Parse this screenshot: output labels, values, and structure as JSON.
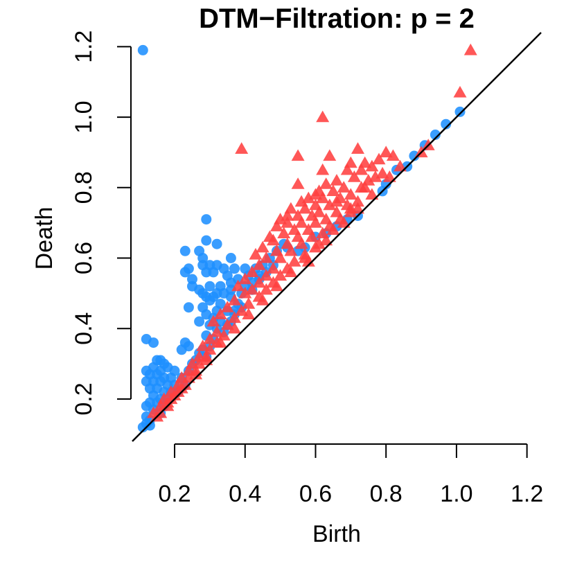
{
  "chart_data": {
    "type": "scatter",
    "title": "DTM−Filtration: p =  2",
    "xlabel": "Birth",
    "ylabel": "Death",
    "xlim": [
      0.08,
      1.24
    ],
    "ylim": [
      0.08,
      1.24
    ],
    "x_ticks": [
      0.2,
      0.4,
      0.6,
      0.8,
      1.0,
      1.2
    ],
    "x_tick_labels": [
      "0.2",
      "0.4",
      "0.6",
      "0.8",
      "1.0",
      "1.2"
    ],
    "y_ticks": [
      0.2,
      0.4,
      0.6,
      0.8,
      1.0,
      1.2
    ],
    "y_tick_labels": [
      "0.2",
      "0.4",
      "0.6",
      "0.8",
      "1.0",
      "1.2"
    ],
    "diagonal": true,
    "series": [
      {
        "marker": "circle",
        "color": "#1E90FF",
        "points": [
          [
            0.11,
            1.19
          ],
          [
            1.01,
            1.015
          ],
          [
            0.94,
            0.95
          ],
          [
            0.88,
            0.89
          ],
          [
            0.86,
            0.86
          ],
          [
            0.79,
            0.79
          ],
          [
            0.72,
            0.72
          ],
          [
            0.29,
            0.71
          ],
          [
            0.29,
            0.65
          ],
          [
            0.32,
            0.64
          ],
          [
            0.51,
            0.64
          ],
          [
            0.27,
            0.62
          ],
          [
            0.23,
            0.62
          ],
          [
            0.28,
            0.6
          ],
          [
            0.36,
            0.6
          ],
          [
            0.28,
            0.58
          ],
          [
            0.3,
            0.58
          ],
          [
            0.32,
            0.58
          ],
          [
            0.34,
            0.57
          ],
          [
            0.37,
            0.57
          ],
          [
            0.4,
            0.57
          ],
          [
            0.43,
            0.57
          ],
          [
            0.24,
            0.57
          ],
          [
            0.23,
            0.56
          ],
          [
            0.29,
            0.56
          ],
          [
            0.31,
            0.56
          ],
          [
            0.46,
            0.56
          ],
          [
            0.35,
            0.55
          ],
          [
            0.41,
            0.55
          ],
          [
            0.25,
            0.54
          ],
          [
            0.38,
            0.54
          ],
          [
            0.44,
            0.54
          ],
          [
            0.36,
            0.53
          ],
          [
            0.25,
            0.52
          ],
          [
            0.3,
            0.52
          ],
          [
            0.33,
            0.52
          ],
          [
            0.27,
            0.51
          ],
          [
            0.36,
            0.51
          ],
          [
            0.42,
            0.51
          ],
          [
            0.28,
            0.5
          ],
          [
            0.32,
            0.5
          ],
          [
            0.34,
            0.5
          ],
          [
            0.39,
            0.5
          ],
          [
            0.29,
            0.49
          ],
          [
            0.31,
            0.49
          ],
          [
            0.36,
            0.49
          ],
          [
            0.3,
            0.48
          ],
          [
            0.33,
            0.47
          ],
          [
            0.38,
            0.47
          ],
          [
            0.28,
            0.46
          ],
          [
            0.24,
            0.46
          ],
          [
            0.32,
            0.45
          ],
          [
            0.35,
            0.45
          ],
          [
            0.37,
            0.45
          ],
          [
            0.29,
            0.44
          ],
          [
            0.31,
            0.43
          ],
          [
            0.27,
            0.42
          ],
          [
            0.33,
            0.42
          ],
          [
            0.3,
            0.41
          ],
          [
            0.32,
            0.4
          ],
          [
            0.34,
            0.39
          ],
          [
            0.29,
            0.38
          ],
          [
            0.31,
            0.37
          ],
          [
            0.12,
            0.37
          ],
          [
            0.14,
            0.36
          ],
          [
            0.23,
            0.36
          ],
          [
            0.24,
            0.35
          ],
          [
            0.22,
            0.34
          ],
          [
            0.28,
            0.34
          ],
          [
            0.3,
            0.35
          ],
          [
            0.27,
            0.33
          ],
          [
            0.29,
            0.32
          ],
          [
            0.26,
            0.31
          ],
          [
            0.16,
            0.31
          ],
          [
            0.15,
            0.31
          ],
          [
            0.17,
            0.3
          ],
          [
            0.25,
            0.3
          ],
          [
            0.14,
            0.29
          ],
          [
            0.18,
            0.29
          ],
          [
            0.12,
            0.28
          ],
          [
            0.16,
            0.28
          ],
          [
            0.2,
            0.28
          ],
          [
            0.24,
            0.28
          ],
          [
            0.13,
            0.27
          ],
          [
            0.15,
            0.27
          ],
          [
            0.17,
            0.26
          ],
          [
            0.19,
            0.26
          ],
          [
            0.22,
            0.26
          ],
          [
            0.12,
            0.25
          ],
          [
            0.14,
            0.25
          ],
          [
            0.16,
            0.25
          ],
          [
            0.18,
            0.24
          ],
          [
            0.2,
            0.24
          ],
          [
            0.23,
            0.24
          ],
          [
            0.13,
            0.23
          ],
          [
            0.15,
            0.23
          ],
          [
            0.17,
            0.22
          ],
          [
            0.19,
            0.22
          ],
          [
            0.21,
            0.22
          ],
          [
            0.14,
            0.21
          ],
          [
            0.16,
            0.2
          ],
          [
            0.18,
            0.2
          ],
          [
            0.13,
            0.19
          ],
          [
            0.15,
            0.19
          ],
          [
            0.17,
            0.18
          ],
          [
            0.12,
            0.18
          ],
          [
            0.14,
            0.17
          ],
          [
            0.16,
            0.16
          ],
          [
            0.12,
            0.15
          ],
          [
            0.13,
            0.14
          ],
          [
            0.12,
            0.13
          ],
          [
            0.11,
            0.12
          ],
          [
            0.13,
            0.125
          ],
          [
            0.47,
            0.6
          ],
          [
            0.49,
            0.62
          ],
          [
            0.52,
            0.63
          ],
          [
            0.45,
            0.58
          ],
          [
            0.48,
            0.58
          ],
          [
            0.44,
            0.55
          ],
          [
            0.42,
            0.53
          ],
          [
            0.4,
            0.52
          ],
          [
            0.39,
            0.46
          ],
          [
            0.37,
            0.44
          ],
          [
            0.36,
            0.42
          ],
          [
            0.35,
            0.41
          ],
          [
            0.57,
            0.63
          ],
          [
            0.55,
            0.62
          ],
          [
            0.6,
            0.66
          ],
          [
            0.63,
            0.67
          ],
          [
            0.66,
            0.69
          ],
          [
            0.69,
            0.71
          ],
          [
            0.8,
            0.81
          ],
          [
            0.83,
            0.85
          ],
          [
            0.91,
            0.92
          ],
          [
            0.97,
            0.98
          ]
        ]
      },
      {
        "marker": "triangle",
        "color": "#FF4040",
        "points": [
          [
            1.04,
            1.19
          ],
          [
            1.01,
            1.07
          ],
          [
            0.62,
            1.0
          ],
          [
            0.39,
            0.91
          ],
          [
            0.92,
            0.92
          ],
          [
            0.9,
            0.9
          ],
          [
            0.55,
            0.89
          ],
          [
            0.64,
            0.89
          ],
          [
            0.72,
            0.91
          ],
          [
            0.8,
            0.9
          ],
          [
            0.82,
            0.89
          ],
          [
            0.78,
            0.88
          ],
          [
            0.74,
            0.87
          ],
          [
            0.7,
            0.87
          ],
          [
            0.76,
            0.86
          ],
          [
            0.84,
            0.86
          ],
          [
            0.62,
            0.85
          ],
          [
            0.69,
            0.85
          ],
          [
            0.73,
            0.85
          ],
          [
            0.79,
            0.84
          ],
          [
            0.81,
            0.83
          ],
          [
            0.77,
            0.83
          ],
          [
            0.71,
            0.83
          ],
          [
            0.66,
            0.82
          ],
          [
            0.75,
            0.82
          ],
          [
            0.55,
            0.81
          ],
          [
            0.63,
            0.81
          ],
          [
            0.68,
            0.8
          ],
          [
            0.73,
            0.8
          ],
          [
            0.61,
            0.79
          ],
          [
            0.65,
            0.79
          ],
          [
            0.7,
            0.78
          ],
          [
            0.76,
            0.78
          ],
          [
            0.58,
            0.77
          ],
          [
            0.62,
            0.77
          ],
          [
            0.67,
            0.77
          ],
          [
            0.72,
            0.76
          ],
          [
            0.56,
            0.76
          ],
          [
            0.6,
            0.75
          ],
          [
            0.64,
            0.75
          ],
          [
            0.69,
            0.75
          ],
          [
            0.53,
            0.74
          ],
          [
            0.57,
            0.74
          ],
          [
            0.61,
            0.73
          ],
          [
            0.66,
            0.73
          ],
          [
            0.7,
            0.73
          ],
          [
            0.55,
            0.72
          ],
          [
            0.59,
            0.72
          ],
          [
            0.63,
            0.71
          ],
          [
            0.67,
            0.71
          ],
          [
            0.5,
            0.71
          ],
          [
            0.52,
            0.7
          ],
          [
            0.56,
            0.7
          ],
          [
            0.6,
            0.7
          ],
          [
            0.64,
            0.69
          ],
          [
            0.49,
            0.69
          ],
          [
            0.54,
            0.68
          ],
          [
            0.58,
            0.68
          ],
          [
            0.62,
            0.67
          ],
          [
            0.51,
            0.67
          ],
          [
            0.47,
            0.66
          ],
          [
            0.55,
            0.66
          ],
          [
            0.59,
            0.66
          ],
          [
            0.63,
            0.65
          ],
          [
            0.48,
            0.65
          ],
          [
            0.52,
            0.64
          ],
          [
            0.56,
            0.64
          ],
          [
            0.6,
            0.63
          ],
          [
            0.45,
            0.63
          ],
          [
            0.49,
            0.62
          ],
          [
            0.53,
            0.62
          ],
          [
            0.57,
            0.61
          ],
          [
            0.43,
            0.61
          ],
          [
            0.46,
            0.6
          ],
          [
            0.5,
            0.6
          ],
          [
            0.54,
            0.59
          ],
          [
            0.58,
            0.59
          ],
          [
            0.44,
            0.58
          ],
          [
            0.48,
            0.57
          ],
          [
            0.52,
            0.57
          ],
          [
            0.42,
            0.56
          ],
          [
            0.46,
            0.55
          ],
          [
            0.5,
            0.55
          ],
          [
            0.4,
            0.54
          ],
          [
            0.44,
            0.53
          ],
          [
            0.48,
            0.53
          ],
          [
            0.38,
            0.52
          ],
          [
            0.42,
            0.51
          ],
          [
            0.46,
            0.51
          ],
          [
            0.4,
            0.5
          ],
          [
            0.44,
            0.49
          ],
          [
            0.37,
            0.48
          ],
          [
            0.41,
            0.47
          ],
          [
            0.35,
            0.46
          ],
          [
            0.39,
            0.45
          ],
          [
            0.33,
            0.44
          ],
          [
            0.37,
            0.43
          ],
          [
            0.31,
            0.42
          ],
          [
            0.35,
            0.41
          ],
          [
            0.32,
            0.39
          ],
          [
            0.34,
            0.38
          ],
          [
            0.3,
            0.37
          ],
          [
            0.32,
            0.36
          ],
          [
            0.28,
            0.35
          ],
          [
            0.3,
            0.34
          ],
          [
            0.27,
            0.32
          ],
          [
            0.29,
            0.32
          ],
          [
            0.25,
            0.3
          ],
          [
            0.27,
            0.3
          ],
          [
            0.24,
            0.28
          ],
          [
            0.26,
            0.28
          ],
          [
            0.22,
            0.26
          ],
          [
            0.24,
            0.26
          ],
          [
            0.21,
            0.24
          ],
          [
            0.23,
            0.24
          ],
          [
            0.19,
            0.22
          ],
          [
            0.21,
            0.22
          ],
          [
            0.17,
            0.2
          ],
          [
            0.19,
            0.2
          ],
          [
            0.16,
            0.18
          ],
          [
            0.18,
            0.18
          ],
          [
            0.14,
            0.16
          ],
          [
            0.16,
            0.16
          ],
          [
            0.15,
            0.15
          ],
          [
            0.52,
            0.72
          ],
          [
            0.66,
            0.76
          ],
          [
            0.7,
            0.74
          ],
          [
            0.68,
            0.7
          ],
          [
            0.72,
            0.74
          ],
          [
            0.65,
            0.68
          ],
          [
            0.61,
            0.64
          ],
          [
            0.57,
            0.6
          ],
          [
            0.53,
            0.56
          ],
          [
            0.49,
            0.52
          ],
          [
            0.45,
            0.48
          ],
          [
            0.41,
            0.44
          ],
          [
            0.37,
            0.4
          ],
          [
            0.33,
            0.36
          ],
          [
            0.29,
            0.31
          ],
          [
            0.26,
            0.27
          ],
          [
            0.22,
            0.23
          ],
          [
            0.2,
            0.21
          ],
          [
            0.18,
            0.19
          ],
          [
            0.6,
            0.78
          ],
          [
            0.74,
            0.8
          ]
        ]
      }
    ]
  }
}
